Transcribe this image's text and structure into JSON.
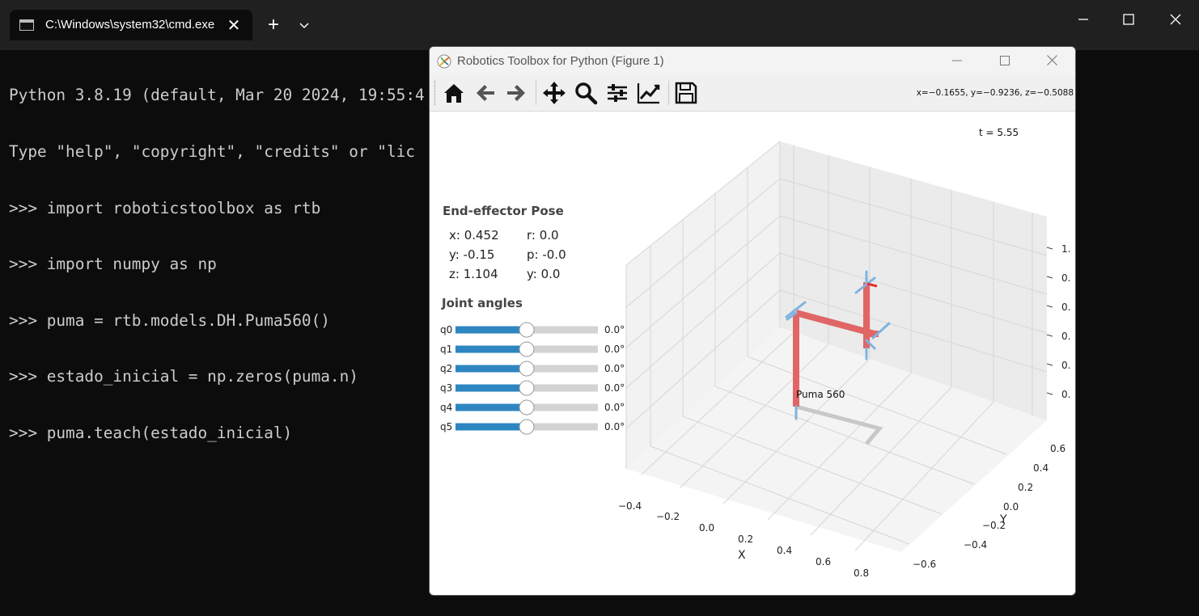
{
  "terminal": {
    "tab_title": "C:\\Windows\\system32\\cmd.exe",
    "lines": [
      "Python 3.8.19 (default, Mar 20 2024, 19:55:4",
      "Type \"help\", \"copyright\", \"credits\" or \"lic",
      ">>> import roboticstoolbox as rtb",
      ">>> import numpy as np",
      ">>> puma = rtb.models.DH.Puma560()",
      ">>> estado_inicial = np.zeros(puma.n)",
      ">>> puma.teach(estado_inicial)"
    ],
    "new_tab_label": "+",
    "text_color": "#cccccc",
    "background": "#0c0c0c"
  },
  "figure": {
    "title": "Robotics Toolbox for Python (Figure 1)",
    "toolbar": {
      "buttons": [
        "home-icon",
        "back-icon",
        "forward-icon",
        "pan-icon",
        "zoom-icon",
        "configure-subplots-icon",
        "edit-axis-icon",
        "save-icon"
      ],
      "coords": "x=−0.1655, y=−0.9236, z=−0.5088"
    },
    "time_label": "t = 5.55",
    "pose": {
      "heading": "End-effector Pose",
      "x": "x: 0.452",
      "y": "y: -0.15",
      "z": "z: 1.104",
      "r": "r: 0.0",
      "p": "p: -0.0",
      "yaw": "y: 0.0"
    },
    "joints": {
      "heading": "Joint angles",
      "items": [
        {
          "label": "q0",
          "value": "0.0°",
          "fraction": 0.5
        },
        {
          "label": "q1",
          "value": "0.0°",
          "fraction": 0.5
        },
        {
          "label": "q2",
          "value": "0.0°",
          "fraction": 0.5
        },
        {
          "label": "q3",
          "value": "0.0°",
          "fraction": 0.5
        },
        {
          "label": "q4",
          "value": "0.0°",
          "fraction": 0.5
        },
        {
          "label": "q5",
          "value": "0.0°",
          "fraction": 0.5
        }
      ],
      "fill_color": "#2e86c1",
      "track_color": "#d3d3d3"
    },
    "plot": {
      "robot_label": "Puma 560",
      "x_axis_label": "X",
      "y_axis_label": "Y",
      "x_ticks": [
        "−0.4",
        "−0.2",
        "0.0",
        "0.2",
        "0.4",
        "0.6",
        "0.8"
      ],
      "y_ticks": [
        "0.6",
        "0.4",
        "0.2",
        "0.0",
        "−0.2",
        "−0.4",
        "−0.6"
      ],
      "z_ticks": [
        "1.",
        "0.",
        "0.",
        "0.",
        "0.",
        "0."
      ],
      "link_color": "#e06666",
      "frame_color": "#7fb3e0"
    }
  }
}
